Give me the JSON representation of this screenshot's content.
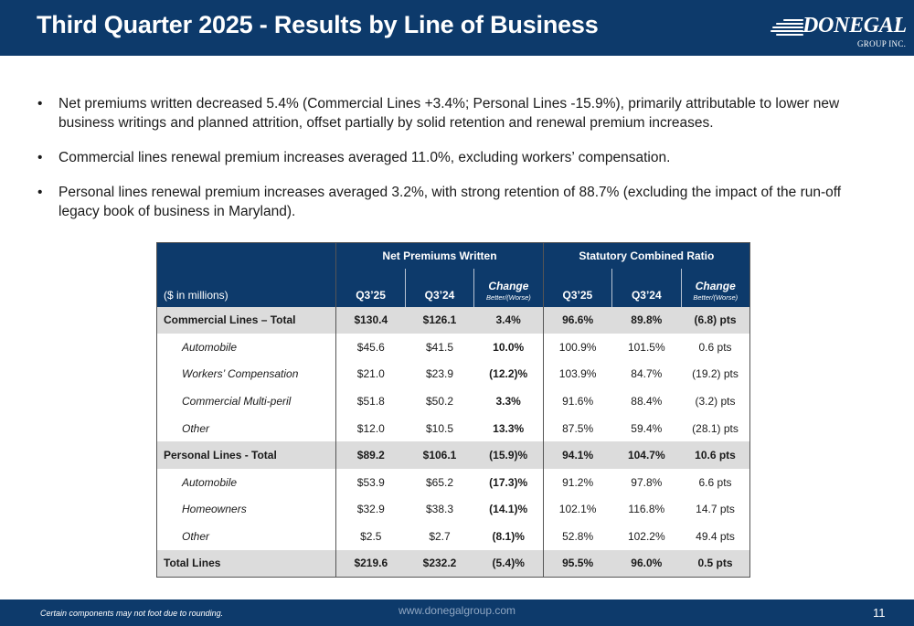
{
  "header": {
    "title": "Third Quarter 2025 - Results by Line of Business",
    "logo": {
      "name": "DONEGAL",
      "registered": "®",
      "subtitle": "GROUP INC."
    }
  },
  "bullets": [
    "Net premiums written decreased 5.4% (Commercial Lines +3.4%; Personal Lines -15.9%), primarily attributable to lower new business writings and planned attrition, offset partially by solid retention and renewal premium increases.",
    "Commercial lines renewal premium increases averaged 11.0%, excluding workers’ compensation.",
    "Personal lines renewal premium increases averaged 3.2%, with strong retention of 88.7% (excluding the impact of the run-off legacy book of business in Maryland)."
  ],
  "bullet_symbol": "•",
  "table": {
    "group_headers": [
      "Net Premiums Written",
      "Statutory Combined Ratio"
    ],
    "label_header": "($ in millions)",
    "column_headers": {
      "npw_q325": "Q3’25",
      "npw_q324": "Q3’24",
      "npw_change": "Change",
      "npw_change_sub": "Better/(Worse)",
      "scr_q325": "Q3’25",
      "scr_q324": "Q3’24",
      "scr_change": "Change",
      "scr_change_sub": "Better/(Worse)"
    },
    "rows": [
      {
        "label": "Commercial Lines – Total",
        "npw_q325": "$130.4",
        "npw_q324": "$126.1",
        "npw_change": "3.4%",
        "scr_q325": "96.6%",
        "scr_q324": "89.8%",
        "scr_change": "(6.8) pts"
      },
      {
        "label": "Automobile",
        "npw_q325": "$45.6",
        "npw_q324": "$41.5",
        "npw_change": "10.0%",
        "scr_q325": "100.9%",
        "scr_q324": "101.5%",
        "scr_change": "0.6 pts"
      },
      {
        "label": "Workers’ Compensation",
        "npw_q325": "$21.0",
        "npw_q324": "$23.9",
        "npw_change": "(12.2)%",
        "scr_q325": "103.9%",
        "scr_q324": "84.7%",
        "scr_change": "(19.2) pts"
      },
      {
        "label": "Commercial Multi-peril",
        "npw_q325": "$51.8",
        "npw_q324": "$50.2",
        "npw_change": "3.3%",
        "scr_q325": "91.6%",
        "scr_q324": "88.4%",
        "scr_change": "(3.2) pts"
      },
      {
        "label": "Other",
        "npw_q325": "$12.0",
        "npw_q324": "$10.5",
        "npw_change": "13.3%",
        "scr_q325": "87.5%",
        "scr_q324": "59.4%",
        "scr_change": "(28.1) pts"
      },
      {
        "label": "Personal Lines - Total",
        "npw_q325": "$89.2",
        "npw_q324": "$106.1",
        "npw_change": "(15.9)%",
        "scr_q325": "94.1%",
        "scr_q324": "104.7%",
        "scr_change": "10.6 pts"
      },
      {
        "label": "Automobile",
        "npw_q325": "$53.9",
        "npw_q324": "$65.2",
        "npw_change": "(17.3)%",
        "scr_q325": "91.2%",
        "scr_q324": "97.8%",
        "scr_change": "6.6 pts"
      },
      {
        "label": "Homeowners",
        "npw_q325": "$32.9",
        "npw_q324": "$38.3",
        "npw_change": "(14.1)%",
        "scr_q325": "102.1%",
        "scr_q324": "116.8%",
        "scr_change": "14.7 pts"
      },
      {
        "label": "Other",
        "npw_q325": "$2.5",
        "npw_q324": "$2.7",
        "npw_change": "(8.1)%",
        "scr_q325": "52.8%",
        "scr_q324": "102.2%",
        "scr_change": "49.4 pts"
      },
      {
        "label": "Total Lines",
        "npw_q325": "$219.6",
        "npw_q324": "$232.2",
        "npw_change": "(5.4)%",
        "scr_q325": "95.5%",
        "scr_q324": "96.0%",
        "scr_change": "0.5 pts"
      }
    ]
  },
  "footer": {
    "note": "Certain components may not foot due to rounding.",
    "url": "www.donegalgroup.com",
    "page_number": "11"
  },
  "colors": {
    "brand_navy": "#0d3a6b",
    "total_row_gray": "#dcdcdc",
    "footer_url": "#8fa6c2"
  }
}
